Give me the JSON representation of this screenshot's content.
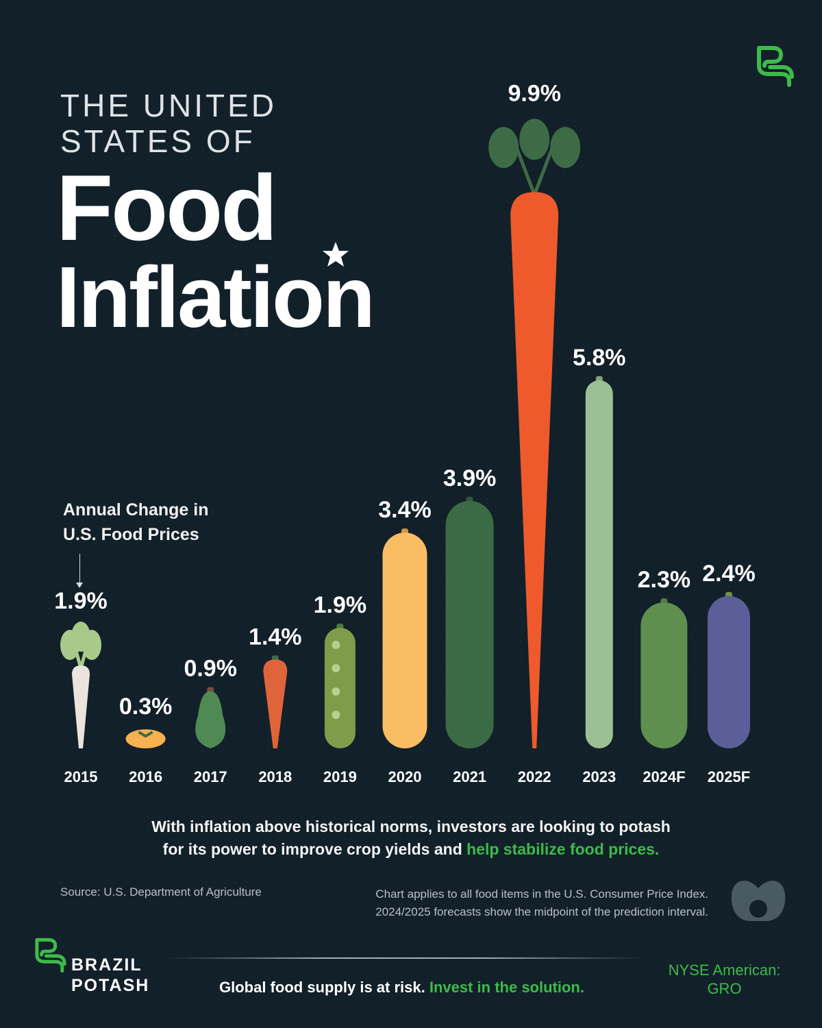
{
  "header": {
    "line1": "THE UNITED",
    "line2": "STATES OF",
    "title1": "Food",
    "title2": "Inflation"
  },
  "subtitle": {
    "line1": "Annual Change in",
    "line2": "U.S. Food Prices"
  },
  "colors": {
    "background": "#12202a",
    "accent": "#3dbb4a"
  },
  "chart_data": {
    "type": "bar",
    "title": "",
    "ylabel": "Annual Change in U.S. Food Prices",
    "categories": [
      "2015",
      "2016",
      "2017",
      "2018",
      "2019",
      "2020",
      "2021",
      "2022",
      "2023",
      "2024F",
      "2025F"
    ],
    "values": [
      1.9,
      0.3,
      0.9,
      1.4,
      1.9,
      3.4,
      3.9,
      9.9,
      5.8,
      2.3,
      2.4
    ],
    "labels": [
      "1.9%",
      "0.3%",
      "0.9%",
      "1.4%",
      "1.9%",
      "3.4%",
      "3.9%",
      "9.9%",
      "5.8%",
      "2.3%",
      "2.4%"
    ],
    "marks": [
      "radish",
      "tomato",
      "avocado",
      "chili-pepper",
      "pea-pod",
      "squash",
      "zucchini",
      "carrot",
      "asparagus",
      "pickle",
      "eggplant"
    ],
    "mark_colors": [
      "#ece4dc",
      "#f7b24f",
      "#4f8a55",
      "#e0643a",
      "#7e9c4a",
      "#fbbd63",
      "#3b6b45",
      "#ef5a2c",
      "#9dbf95",
      "#5e8f4f",
      "#5a5f99"
    ]
  },
  "note": {
    "text": "With inflation above historical norms, investors are looking to potash",
    "text2": "for its power to improve crop yields and ",
    "highlight": "help stabilize food prices."
  },
  "footer": {
    "source": "Source: U.S. Department of Agriculture",
    "note1": "Chart applies to all food items in the U.S. Consumer Price Index.",
    "note2": "2024/2025 forecasts show the midpoint of the prediction interval.",
    "brand1": "BRAZIL",
    "brand2": "POTASH",
    "tagline": "Global food supply is at risk. ",
    "tagline_highlight": "Invest in the solution.",
    "ticker1": "NYSE American:",
    "ticker2": "GRO"
  }
}
